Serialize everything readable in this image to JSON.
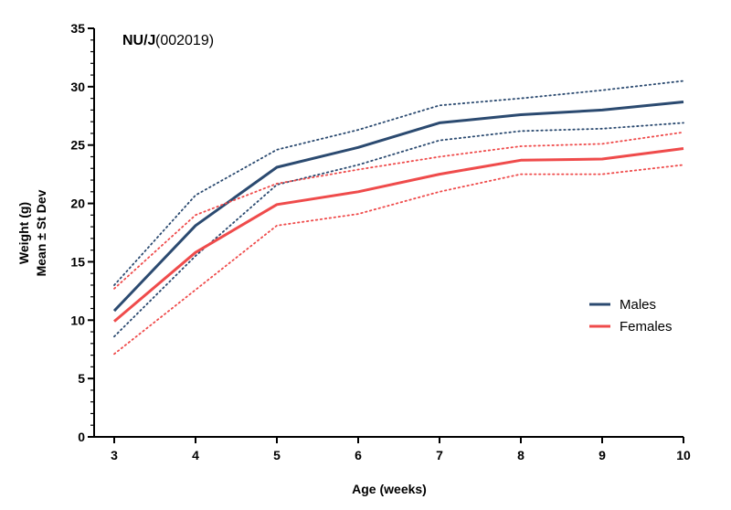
{
  "chart_data": {
    "type": "line",
    "title": "NU/J",
    "subtitle": "(002019)",
    "xlabel": "Age (weeks)",
    "ylabel": [
      "Weight (g)",
      "Mean ± St Dev"
    ],
    "x": [
      3,
      4,
      5,
      6,
      7,
      8,
      9,
      10
    ],
    "xlim": [
      3,
      10
    ],
    "ylim": [
      0,
      35
    ],
    "yticks": [
      0,
      5,
      10,
      15,
      20,
      25,
      30,
      35
    ],
    "grid": false,
    "legend_position": "right",
    "series": [
      {
        "name": "Males",
        "color": "#2b4a70",
        "mean": [
          10.8,
          18.1,
          23.1,
          24.8,
          26.9,
          27.6,
          28.0,
          28.7
        ],
        "upper": [
          13.0,
          20.7,
          24.6,
          26.3,
          28.4,
          29.0,
          29.7,
          30.5
        ],
        "lower": [
          8.6,
          15.5,
          21.6,
          23.3,
          25.4,
          26.2,
          26.4,
          26.9
        ]
      },
      {
        "name": "Females",
        "color": "#ef4b4b",
        "mean": [
          9.9,
          15.8,
          19.9,
          21.0,
          22.5,
          23.7,
          23.8,
          24.7
        ],
        "upper": [
          12.7,
          19.0,
          21.7,
          22.9,
          24.0,
          24.9,
          25.1,
          26.1
        ],
        "lower": [
          7.1,
          12.6,
          18.1,
          19.1,
          21.0,
          22.5,
          22.5,
          23.3
        ]
      }
    ]
  }
}
